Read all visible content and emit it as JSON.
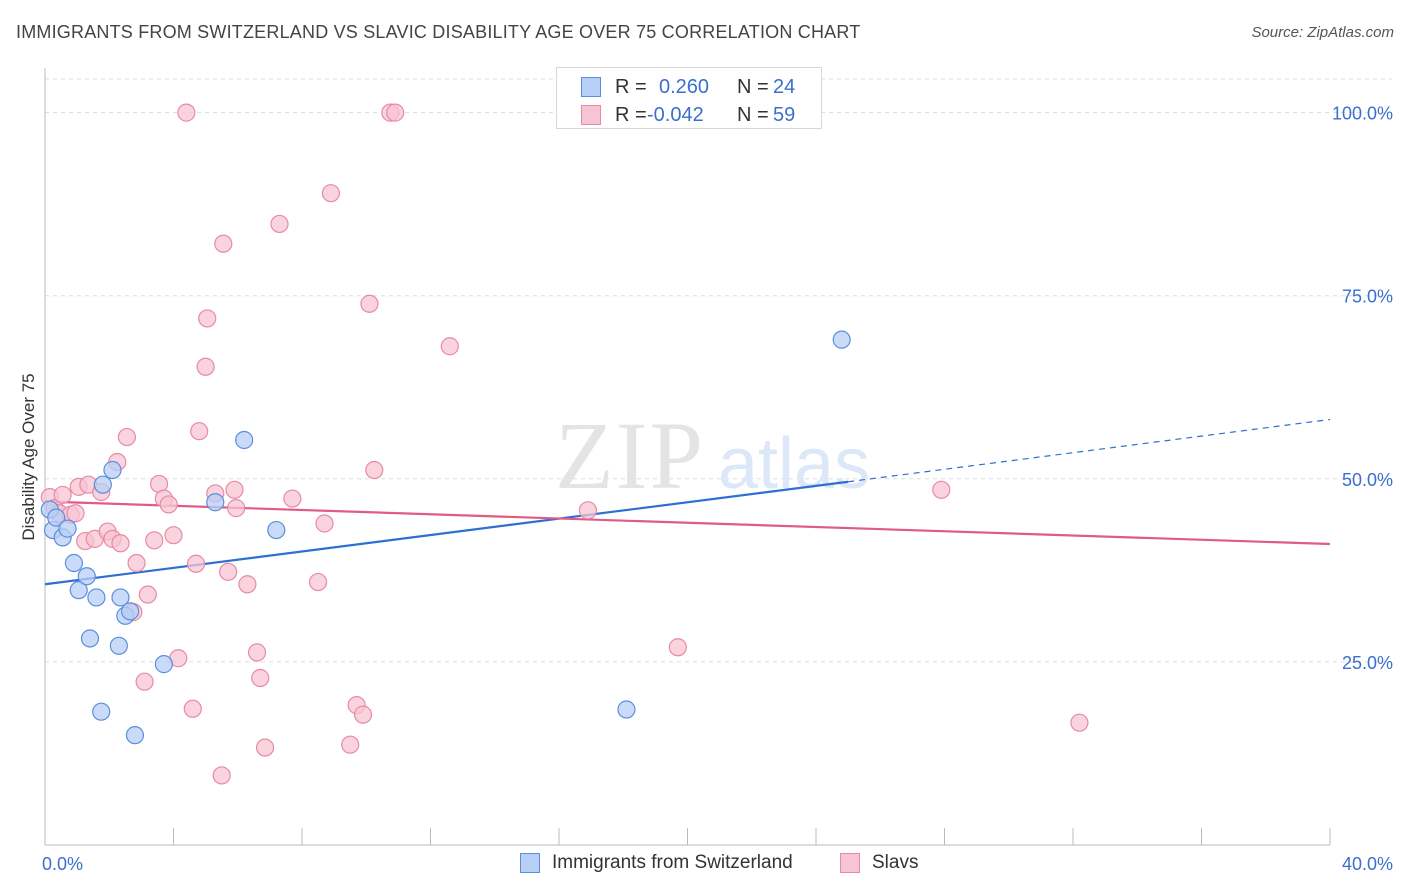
{
  "title": "IMMIGRANTS FROM SWITZERLAND VS SLAVIC DISABILITY AGE OVER 75 CORRELATION CHART",
  "source": "Source: ZipAtlas.com",
  "watermark": {
    "zip": "ZIP",
    "atlas": "atlas"
  },
  "legend_top": {
    "rows": [
      {
        "r_label": "R =",
        "r_value": "0.260",
        "n_label": "N =",
        "n_value": "24"
      },
      {
        "r_label": "R =",
        "r_value": "-0.042",
        "n_label": "N =",
        "n_value": "59"
      }
    ]
  },
  "legend_bottom": {
    "items": [
      "Immigrants from Switzerland",
      "Slavs"
    ]
  },
  "colors": {
    "blue_fill": "#b7cff5",
    "blue_stroke": "#5c8fd9",
    "blue_line": "#2d6fd2",
    "pink_fill": "#f7c4d3",
    "pink_stroke": "#e88aa6",
    "pink_line": "#e05a8a",
    "axis_text": "#3a6fd0",
    "grid": "#dddddd"
  },
  "chart_data": {
    "type": "scatter",
    "title": "IMMIGRANTS FROM SWITZERLAND VS SLAVIC DISABILITY AGE OVER 75 CORRELATION CHART",
    "xlabel": "",
    "ylabel": "Disability Age Over 75",
    "xlim": [
      0,
      40
    ],
    "ylim": [
      0,
      105
    ],
    "x_ticks": [
      0,
      4,
      8,
      12,
      16,
      20,
      24,
      28,
      32,
      36,
      40
    ],
    "x_tick_labels": {
      "0": "0.0%",
      "40": "40.0%"
    },
    "y_ticks": [
      25,
      50,
      75,
      100
    ],
    "y_tick_labels": [
      "25.0%",
      "50.0%",
      "75.0%",
      "100.0%"
    ],
    "legend_position": "top-center",
    "series": [
      {
        "name": "Immigrants from Switzerland",
        "r": 0.26,
        "n": 24,
        "points": [
          [
            0.15,
            45.8
          ],
          [
            0.25,
            43.0
          ],
          [
            0.35,
            44.7
          ],
          [
            0.55,
            42.0
          ],
          [
            0.7,
            43.2
          ],
          [
            0.9,
            38.5
          ],
          [
            1.05,
            34.8
          ],
          [
            1.3,
            36.7
          ],
          [
            1.4,
            28.2
          ],
          [
            1.6,
            33.8
          ],
          [
            1.75,
            18.2
          ],
          [
            1.8,
            49.2
          ],
          [
            2.1,
            51.2
          ],
          [
            2.3,
            27.2
          ],
          [
            2.35,
            33.8
          ],
          [
            2.5,
            31.3
          ],
          [
            2.65,
            31.9
          ],
          [
            2.8,
            15.0
          ],
          [
            3.7,
            24.7
          ],
          [
            5.3,
            46.8
          ],
          [
            6.2,
            55.3
          ],
          [
            7.2,
            43.0
          ],
          [
            18.1,
            18.5
          ],
          [
            24.8,
            69.0
          ]
        ],
        "trend": {
          "x0": 0,
          "y0": 35.6,
          "x1": 25.0,
          "y1": 49.6,
          "dash_x1": 40.0,
          "dash_y1": 58.1
        }
      },
      {
        "name": "Slavs",
        "r": -0.042,
        "n": 59,
        "points": [
          [
            0.15,
            47.5
          ],
          [
            0.3,
            46.0
          ],
          [
            0.45,
            45.3
          ],
          [
            0.55,
            47.8
          ],
          [
            0.8,
            45.1
          ],
          [
            0.95,
            45.3
          ],
          [
            1.05,
            48.9
          ],
          [
            1.25,
            41.5
          ],
          [
            1.35,
            49.2
          ],
          [
            1.55,
            41.8
          ],
          [
            1.75,
            48.2
          ],
          [
            1.95,
            42.8
          ],
          [
            2.1,
            41.8
          ],
          [
            2.25,
            52.3
          ],
          [
            2.35,
            41.2
          ],
          [
            2.55,
            55.7
          ],
          [
            2.75,
            31.8
          ],
          [
            2.85,
            38.5
          ],
          [
            3.1,
            22.3
          ],
          [
            3.2,
            34.2
          ],
          [
            3.4,
            41.6
          ],
          [
            3.55,
            49.3
          ],
          [
            3.7,
            47.3
          ],
          [
            3.85,
            46.5
          ],
          [
            4.0,
            42.3
          ],
          [
            4.15,
            25.5
          ],
          [
            4.4,
            100.0
          ],
          [
            4.6,
            18.6
          ],
          [
            4.7,
            38.4
          ],
          [
            4.8,
            56.5
          ],
          [
            5.0,
            65.3
          ],
          [
            5.05,
            71.9
          ],
          [
            5.3,
            48.0
          ],
          [
            5.5,
            9.5
          ],
          [
            5.55,
            82.1
          ],
          [
            5.7,
            37.3
          ],
          [
            5.9,
            48.5
          ],
          [
            5.95,
            46.0
          ],
          [
            6.3,
            35.6
          ],
          [
            6.6,
            26.3
          ],
          [
            6.7,
            22.8
          ],
          [
            6.85,
            13.3
          ],
          [
            7.3,
            84.8
          ],
          [
            7.7,
            47.3
          ],
          [
            8.5,
            35.9
          ],
          [
            8.7,
            43.9
          ],
          [
            8.9,
            89.0
          ],
          [
            9.5,
            13.7
          ],
          [
            9.7,
            19.1
          ],
          [
            9.9,
            17.8
          ],
          [
            10.1,
            73.9
          ],
          [
            10.25,
            51.2
          ],
          [
            10.75,
            100.0
          ],
          [
            10.9,
            100.0
          ],
          [
            12.6,
            68.1
          ],
          [
            16.9,
            45.7
          ],
          [
            19.7,
            27.0
          ],
          [
            27.9,
            48.5
          ],
          [
            32.2,
            16.7
          ]
        ],
        "trend": {
          "x0": 0,
          "y0": 46.9,
          "x1": 40.0,
          "y1": 41.1
        }
      }
    ]
  }
}
